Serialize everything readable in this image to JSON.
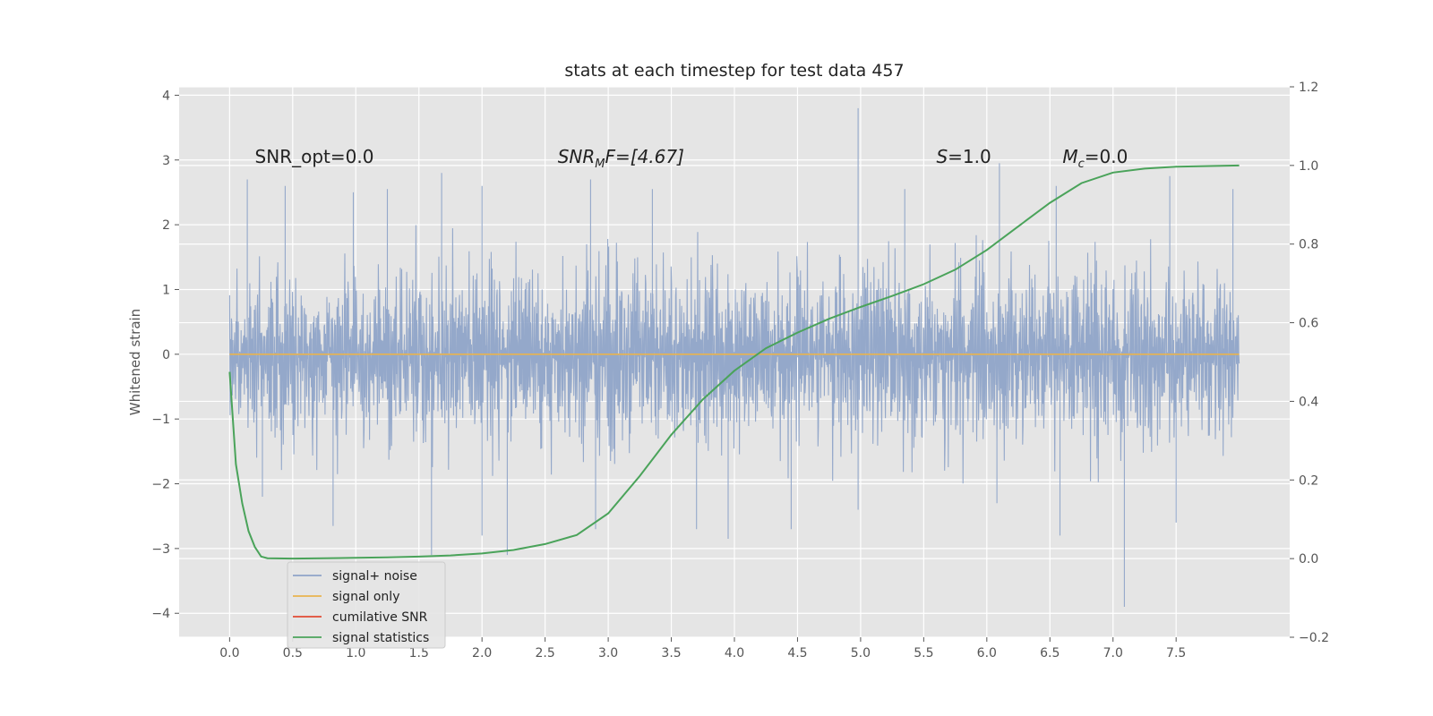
{
  "chart_data": {
    "type": "line",
    "title": "stats at each timestep for test data 457",
    "xlabel": "",
    "ylabel": "Whitened strain",
    "y2label": "",
    "xlim": [
      -0.4,
      8.4
    ],
    "ylim": [
      -4.37,
      4.13
    ],
    "y2lim": [
      -0.2,
      1.2
    ],
    "x_ticks": [
      "0.0",
      "0.5",
      "1.0",
      "1.5",
      "2.0",
      "2.5",
      "3.0",
      "3.5",
      "4.0",
      "4.5",
      "5.0",
      "5.5",
      "6.0",
      "6.5",
      "7.0",
      "7.5"
    ],
    "y_ticks": [
      "4",
      "3",
      "2",
      "1",
      "0",
      "−1",
      "−2",
      "−3",
      "−4"
    ],
    "y2_ticks": [
      "1.2",
      "1.0",
      "0.8",
      "0.6",
      "0.4",
      "0.2",
      "0.0",
      "−0.2"
    ],
    "grid": true,
    "legend_position": "lower-left",
    "annotations": [
      {
        "text": "SNR_opt=0.0",
        "x": 0.2,
        "y": 3.0
      },
      {
        "text": "SNR",
        "sub": "M",
        "tail": "F=[4.67]",
        "x": 2.6,
        "y": 3.0
      },
      {
        "text": "S",
        "tail": "=1.0",
        "x": 5.6,
        "y": 3.0
      },
      {
        "text": "M",
        "sub": "c",
        "tail": "=0.0",
        "x": 6.6,
        "y": 3.0
      }
    ],
    "series": [
      {
        "name": "signal+ noise",
        "axis": "left",
        "color": "#8fa4c8",
        "x_range": [
          0.0,
          8.0
        ],
        "envelope_top": [
          [
            0.0,
            1.9
          ],
          [
            0.5,
            1.9
          ],
          [
            1.0,
            1.9
          ],
          [
            1.5,
            2.0
          ],
          [
            2.0,
            1.9
          ],
          [
            2.5,
            1.9
          ],
          [
            3.0,
            2.0
          ],
          [
            3.5,
            1.9
          ],
          [
            4.0,
            1.9
          ],
          [
            4.5,
            1.9
          ],
          [
            5.0,
            2.0
          ],
          [
            5.5,
            1.9
          ],
          [
            6.0,
            2.0
          ],
          [
            6.5,
            2.0
          ],
          [
            7.0,
            2.0
          ],
          [
            7.5,
            1.9
          ],
          [
            8.0,
            1.9
          ]
        ],
        "envelope_bottom": [
          [
            0.0,
            -1.6
          ],
          [
            0.5,
            -1.9
          ],
          [
            1.0,
            -2.0
          ],
          [
            1.5,
            -2.0
          ],
          [
            2.0,
            -2.0
          ],
          [
            2.5,
            -2.0
          ],
          [
            3.0,
            -2.0
          ],
          [
            3.5,
            -1.9
          ],
          [
            4.0,
            -2.0
          ],
          [
            4.5,
            -1.9
          ],
          [
            5.0,
            -2.0
          ],
          [
            5.5,
            -2.0
          ],
          [
            6.0,
            -2.0
          ],
          [
            6.5,
            -2.0
          ],
          [
            7.0,
            -2.1
          ],
          [
            7.5,
            -2.0
          ],
          [
            8.0,
            -1.8
          ]
        ],
        "peaks": [
          [
            0.14,
            2.7
          ],
          [
            0.44,
            2.6
          ],
          [
            0.98,
            2.5
          ],
          [
            1.25,
            2.55
          ],
          [
            1.68,
            2.8
          ],
          [
            2.0,
            2.6
          ],
          [
            2.86,
            2.7
          ],
          [
            3.35,
            2.55
          ],
          [
            4.98,
            3.8
          ],
          [
            5.35,
            2.55
          ],
          [
            6.1,
            2.95
          ],
          [
            6.55,
            2.6
          ],
          [
            7.45,
            2.75
          ],
          [
            7.95,
            2.55
          ]
        ],
        "troughs": [
          [
            0.26,
            -2.2
          ],
          [
            0.82,
            -2.65
          ],
          [
            1.6,
            -3.1
          ],
          [
            2.0,
            -2.8
          ],
          [
            2.2,
            -3.1
          ],
          [
            2.9,
            -2.7
          ],
          [
            3.7,
            -2.7
          ],
          [
            3.95,
            -2.85
          ],
          [
            4.45,
            -2.7
          ],
          [
            4.98,
            -2.4
          ],
          [
            6.08,
            -2.3
          ],
          [
            6.58,
            -2.8
          ],
          [
            7.09,
            -3.9
          ],
          [
            7.5,
            -2.6
          ]
        ]
      },
      {
        "name": "signal only",
        "axis": "left",
        "color": "#e8b34f",
        "points": [
          [
            0.0,
            0.0
          ],
          [
            8.0,
            0.0
          ]
        ]
      },
      {
        "name": "cumilative SNR",
        "axis": "left",
        "color": "#e24a33",
        "points": []
      },
      {
        "name": "signal statistics",
        "axis": "right",
        "color": "#4aa35a",
        "points": [
          [
            0.0,
            0.475
          ],
          [
            0.05,
            0.24
          ],
          [
            0.1,
            0.14
          ],
          [
            0.15,
            0.07
          ],
          [
            0.2,
            0.03
          ],
          [
            0.25,
            0.005
          ],
          [
            0.3,
            0.001
          ],
          [
            0.5,
            0.0
          ],
          [
            0.75,
            0.001
          ],
          [
            1.0,
            0.002
          ],
          [
            1.25,
            0.003
          ],
          [
            1.5,
            0.005
          ],
          [
            1.75,
            0.008
          ],
          [
            2.0,
            0.013
          ],
          [
            2.25,
            0.022
          ],
          [
            2.5,
            0.037
          ],
          [
            2.75,
            0.06
          ],
          [
            3.0,
            0.115
          ],
          [
            3.25,
            0.21
          ],
          [
            3.5,
            0.315
          ],
          [
            3.75,
            0.405
          ],
          [
            4.0,
            0.478
          ],
          [
            4.25,
            0.535
          ],
          [
            4.5,
            0.575
          ],
          [
            4.75,
            0.61
          ],
          [
            5.0,
            0.64
          ],
          [
            5.25,
            0.668
          ],
          [
            5.5,
            0.698
          ],
          [
            5.75,
            0.735
          ],
          [
            6.0,
            0.785
          ],
          [
            6.25,
            0.845
          ],
          [
            6.5,
            0.905
          ],
          [
            6.75,
            0.955
          ],
          [
            7.0,
            0.982
          ],
          [
            7.25,
            0.992
          ],
          [
            7.5,
            0.997
          ],
          [
            8.0,
            1.0
          ]
        ]
      }
    ]
  }
}
